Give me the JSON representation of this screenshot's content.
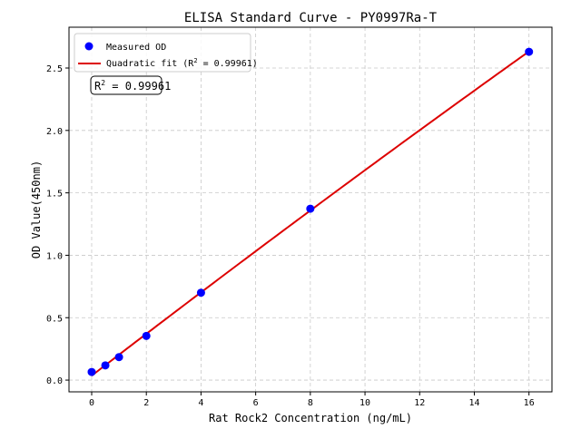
{
  "chart_data": {
    "type": "scatter",
    "title": "ELISA Standard Curve - PY0997Ra-T",
    "xlabel": "Rat Rock2 Concentration (ng/mL)",
    "ylabel": "OD Value(450nm)",
    "xlim": [
      -0.83,
      16.84
    ],
    "ylim": [
      -0.094,
      2.827
    ],
    "xticks": [
      0,
      2,
      4,
      6,
      8,
      10,
      12,
      14,
      16
    ],
    "yticks": [
      0.0,
      0.5,
      1.0,
      1.5,
      2.0,
      2.5
    ],
    "ytick_labels": [
      "0.0",
      "0.5",
      "1.0",
      "1.5",
      "2.0",
      "2.5"
    ],
    "grid": true,
    "legend_position": "top-left",
    "series": [
      {
        "name": "Measured OD",
        "kind": "scatter",
        "color": "#0000ff",
        "x": [
          0,
          0.5,
          1,
          2,
          4,
          8,
          16
        ],
        "y": [
          0.065,
          0.118,
          0.184,
          0.354,
          0.7,
          1.373,
          2.63
        ]
      },
      {
        "name": "Quadratic fit (R² = 0.99961)",
        "kind": "line",
        "color": "#dd0000",
        "fit": "quadratic"
      }
    ],
    "legend": {
      "scatter_label": "Measured OD",
      "fit_label_prefix": "Quadratic fit (R",
      "fit_label_suffix": " = 0.99961)"
    },
    "annotation": {
      "prefix": "R",
      "value": " = 0.99961"
    }
  }
}
